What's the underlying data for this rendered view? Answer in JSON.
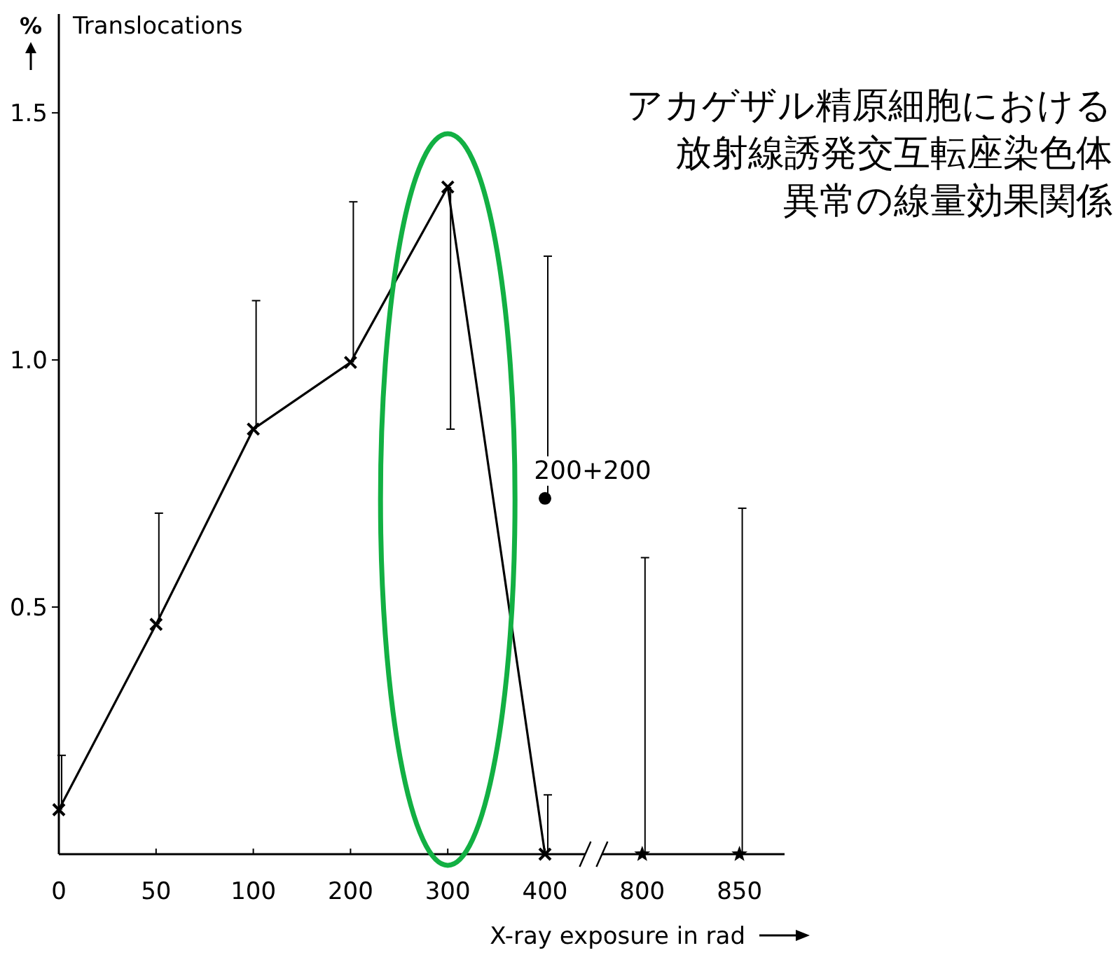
{
  "chart_data": {
    "type": "line",
    "title": "アカゲザル精原細胞における",
    "subtitle": "放射線誘発交互転座染色体異常の線量効果関係",
    "ylabel": "%",
    "xlabel": "X-ray exposure in rad",
    "annotations": [
      "Translocations",
      {
        "text": "200+200",
        "x": "400",
        "y": 0.72
      }
    ],
    "categories": [
      "0",
      "50",
      "100",
      "200",
      "300",
      "400",
      "800",
      "850"
    ],
    "ylim": [
      0,
      1.7
    ],
    "yticks": [
      {
        "value": 0.5,
        "label": "0.5"
      },
      {
        "value": 1,
        "label": "1.0"
      },
      {
        "value": 1.5,
        "label": "1.5"
      }
    ],
    "series": [
      {
        "color": "#000000",
        "marker": "cross",
        "values": [
          0.09,
          0.465,
          0.86,
          0.995,
          1.35,
          0,
          null,
          null
        ],
        "errors": [
          [
            0.09,
            0.2
          ],
          [
            0.465,
            0.69
          ],
          [
            0.86,
            1.12
          ],
          [
            0.995,
            1.32
          ],
          [
            0.86,
            1.35
          ],
          [
            0,
            0.12
          ],
          null,
          null
        ]
      },
      {
        "type": "scatter",
        "color": "#000000",
        "marker": "circle",
        "values": [
          null,
          null,
          null,
          null,
          null,
          0.72,
          null,
          null
        ],
        "errors": [
          null,
          null,
          null,
          null,
          null,
          [
            0.72,
            1.21
          ],
          null,
          null
        ]
      },
      {
        "type": "scatter",
        "color": "#000000",
        "marker": "star",
        "values": [
          null,
          null,
          null,
          null,
          null,
          null,
          0,
          0
        ],
        "errors": [
          null,
          null,
          null,
          null,
          null,
          null,
          [
            0,
            0.6
          ],
          [
            0,
            0.7
          ]
        ]
      }
    ]
  }
}
